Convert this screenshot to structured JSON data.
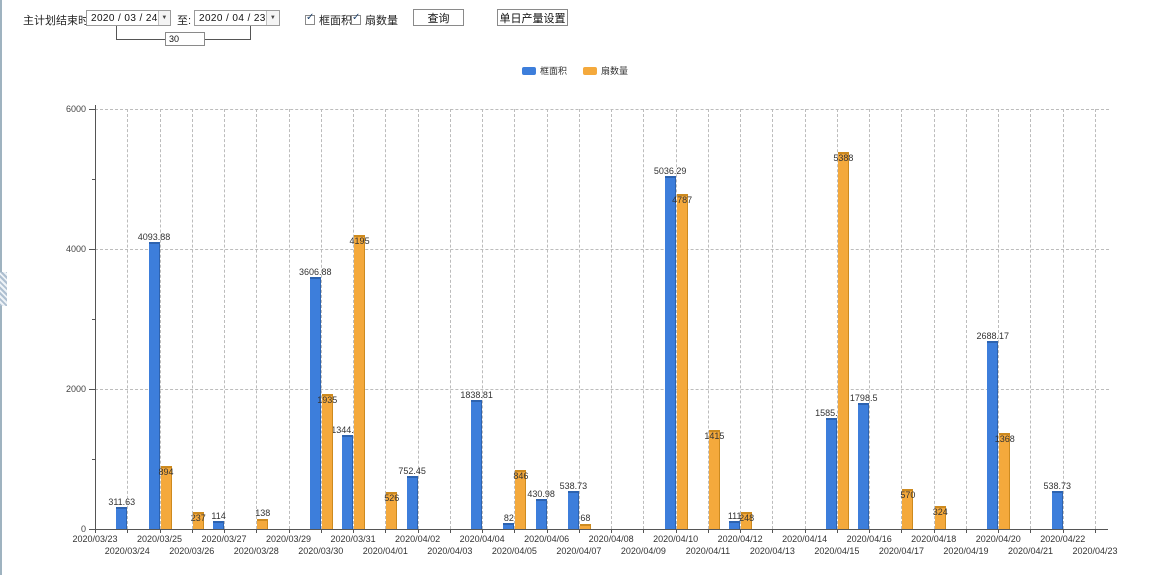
{
  "toolbar": {
    "end_time_label": "主计划结束时间:",
    "date_from": "2020 / 03 / 24",
    "to_label": "至:",
    "date_to": "2020 / 04 / 23",
    "span_days": "30",
    "checkbox_frame_area": "框面积",
    "checkbox_sash_count": "扇数量",
    "query_button": "查询",
    "daily_output_button": "单日产量设置"
  },
  "legend": {
    "items": [
      {
        "label": "框面积",
        "color": "#3d7edb"
      },
      {
        "label": "扇数量",
        "color": "#f4a93c"
      }
    ]
  },
  "chart_data": {
    "type": "bar",
    "title": "",
    "xlabel": "",
    "ylabel": "",
    "ylim": [
      0,
      6000
    ],
    "yticks": [
      0,
      2000,
      4000,
      6000
    ],
    "minor_ytick_step": 1000,
    "grid": true,
    "legend_position": "top",
    "categories": [
      "2020/03/23",
      "2020/03/24",
      "2020/03/25",
      "2020/03/26",
      "2020/03/27",
      "2020/03/28",
      "2020/03/29",
      "2020/03/30",
      "2020/03/31",
      "2020/04/01",
      "2020/04/02",
      "2020/04/03",
      "2020/04/04",
      "2020/04/05",
      "2020/04/06",
      "2020/04/07",
      "2020/04/08",
      "2020/04/09",
      "2020/04/10",
      "2020/04/11",
      "2020/04/12",
      "2020/04/13",
      "2020/04/14",
      "2020/04/15",
      "2020/04/16",
      "2020/04/17",
      "2020/04/18",
      "2020/04/19",
      "2020/04/20",
      "2020/04/21",
      "2020/04/22",
      "2020/04/23"
    ],
    "series": [
      {
        "name": "框面积",
        "color": "#3d7edb",
        "values": [
          null,
          311.63,
          4093.88,
          null,
          114,
          null,
          null,
          3606.88,
          1344.95,
          null,
          752.45,
          null,
          1838.81,
          82,
          430.98,
          538.73,
          null,
          null,
          5036.29,
          null,
          111,
          null,
          null,
          1585.96,
          1798.5,
          null,
          null,
          null,
          2688.17,
          null,
          538.73,
          null
        ]
      },
      {
        "name": "扇数量",
        "color": "#f4a93c",
        "values": [
          null,
          null,
          894,
          237,
          null,
          138,
          null,
          1935,
          4195,
          526,
          null,
          null,
          null,
          846,
          null,
          68,
          null,
          null,
          4787,
          1415,
          248,
          null,
          null,
          5388,
          null,
          570,
          324,
          null,
          1368,
          null,
          null,
          null
        ]
      }
    ]
  }
}
